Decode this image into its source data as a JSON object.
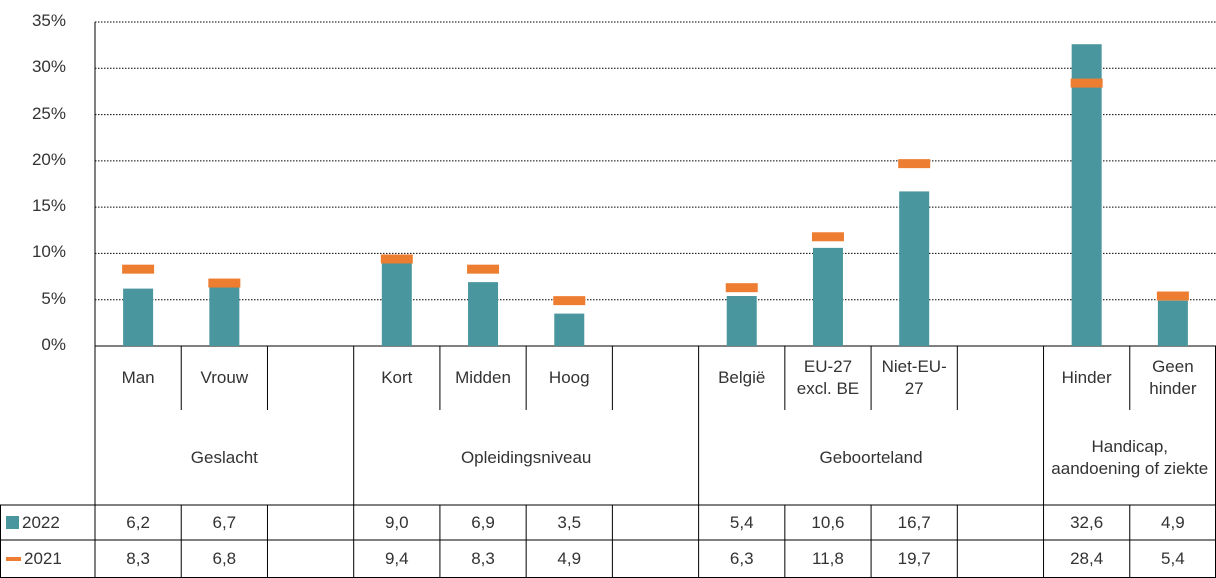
{
  "chart_data": {
    "type": "bar",
    "categories": [
      "Man",
      "Vrouw",
      null,
      "Kort",
      "Midden",
      "Hoog",
      null,
      "België",
      "EU-27 excl. BE",
      "Niet-EU-27",
      null,
      "Hinder",
      "Geen hinder"
    ],
    "groups": [
      {
        "label": "Geslacht",
        "span": 3
      },
      {
        "label": "Opleidingsniveau",
        "span": 4
      },
      {
        "label": "Geboorteland",
        "span": 4
      },
      {
        "label": "Handicap, aandoening of ziekte",
        "span": 2
      }
    ],
    "series": [
      {
        "name": "2022",
        "color": "#4a969e",
        "values": [
          6.2,
          6.7,
          null,
          9.0,
          6.9,
          3.5,
          null,
          5.4,
          10.6,
          16.7,
          null,
          32.6,
          4.9
        ],
        "value_labels": [
          "6,2",
          "6,7",
          null,
          "9,0",
          "6,9",
          "3,5",
          null,
          "5,4",
          "10,6",
          "16,7",
          null,
          "32,6",
          "4,9"
        ]
      },
      {
        "name": "2021",
        "color": "#ed7d31",
        "values": [
          8.3,
          6.8,
          null,
          9.4,
          8.3,
          4.9,
          null,
          6.3,
          11.8,
          19.7,
          null,
          28.4,
          5.4
        ],
        "value_labels": [
          "8,3",
          "6,8",
          null,
          "9,4",
          "8,3",
          "4,9",
          null,
          "6,3",
          "11,8",
          "19,7",
          null,
          "28,4",
          "5,4"
        ]
      }
    ],
    "ylim": [
      0,
      35
    ],
    "yticks": [
      {
        "value": 0,
        "label": "0%"
      },
      {
        "value": 5,
        "label": "5%"
      },
      {
        "value": 10,
        "label": "10%"
      },
      {
        "value": 15,
        "label": "15%"
      },
      {
        "value": 20,
        "label": "20%"
      },
      {
        "value": 25,
        "label": "25%"
      },
      {
        "value": 30,
        "label": "30%"
      },
      {
        "value": 35,
        "label": "35%"
      }
    ],
    "grid": true
  }
}
